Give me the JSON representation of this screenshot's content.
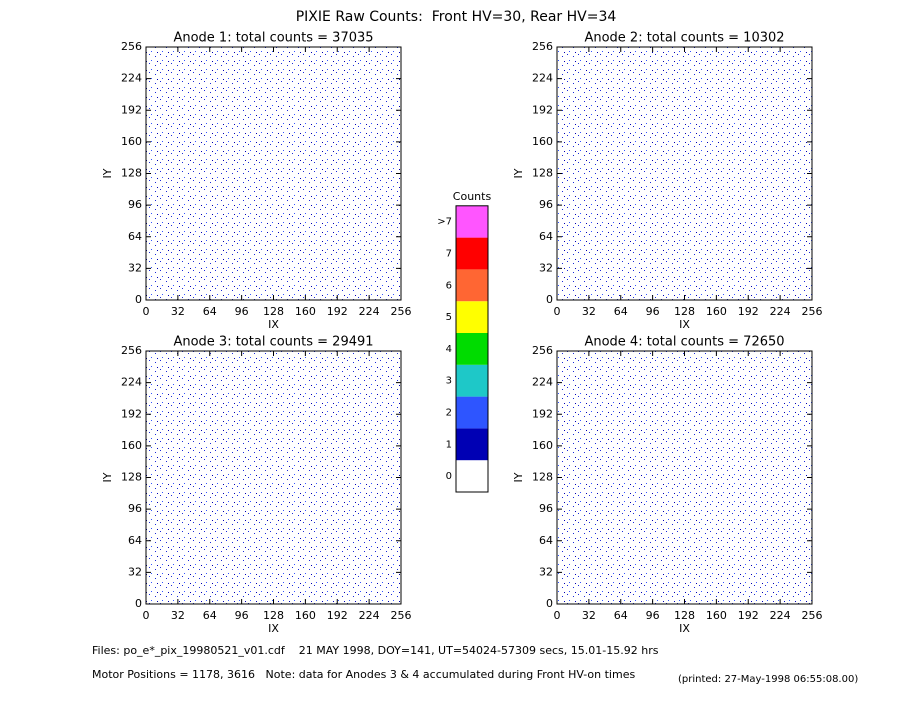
{
  "chart_data": {
    "title": "PIXIE Raw Counts:  Front HV=30, Rear HV=34",
    "panels": [
      {
        "type": "heatmap",
        "title": "Anode 1: total counts = 37035",
        "xlabel": "IX",
        "ylabel": "IY",
        "xlim": [
          0,
          256
        ],
        "ylim": [
          0,
          256
        ],
        "xticks": [
          0,
          32,
          64,
          96,
          128,
          160,
          192,
          224,
          256
        ],
        "yticks": [
          0,
          32,
          64,
          96,
          128,
          160,
          192,
          224,
          256
        ]
      },
      {
        "type": "heatmap",
        "title": "Anode 2: total counts = 10302",
        "xlabel": "IX",
        "ylabel": "IY",
        "xlim": [
          0,
          256
        ],
        "ylim": [
          0,
          256
        ],
        "xticks": [
          0,
          32,
          64,
          96,
          128,
          160,
          192,
          224,
          256
        ],
        "yticks": [
          0,
          32,
          64,
          96,
          128,
          160,
          192,
          224,
          256
        ]
      },
      {
        "type": "heatmap",
        "title": "Anode 3: total counts = 29491",
        "xlabel": "IX",
        "ylabel": "IY",
        "xlim": [
          0,
          256
        ],
        "ylim": [
          0,
          256
        ],
        "xticks": [
          0,
          32,
          64,
          96,
          128,
          160,
          192,
          224,
          256
        ],
        "yticks": [
          0,
          32,
          64,
          96,
          128,
          160,
          192,
          224,
          256
        ]
      },
      {
        "type": "heatmap",
        "title": "Anode 4: total counts = 72650",
        "xlabel": "IX",
        "ylabel": "IY",
        "xlim": [
          0,
          256
        ],
        "ylim": [
          0,
          256
        ],
        "xticks": [
          0,
          32,
          64,
          96,
          128,
          160,
          192,
          224,
          256
        ],
        "yticks": [
          0,
          32,
          64,
          96,
          128,
          160,
          192,
          224,
          256
        ]
      }
    ],
    "colorbar": {
      "title": "Counts",
      "levels": [
        {
          "label": "0",
          "color": "#ffffff"
        },
        {
          "label": "1",
          "color": "#0000b4"
        },
        {
          "label": "2",
          "color": "#2e55ff"
        },
        {
          "label": "3",
          "color": "#1ec8c8"
        },
        {
          "label": "4",
          "color": "#00dc00"
        },
        {
          "label": "5",
          "color": "#ffff00"
        },
        {
          "label": "6",
          "color": "#ff6633"
        },
        {
          "label": "7",
          "color": "#ff0000"
        },
        {
          "label": ">7",
          "color": "#ff55ff"
        }
      ]
    },
    "footer": {
      "files": "Files: po_e*_pix_19980521_v01.cdf    21 MAY 1998, DOY=141, UT=54024-57309 secs, 15.01-15.92 hrs",
      "motor": "Motor Positions = 1178, 3616   Note: data for Anodes 3 & 4 accumulated during Front HV-on times",
      "printed": "(printed: 27-May-1998 06:55:08.00)"
    }
  }
}
